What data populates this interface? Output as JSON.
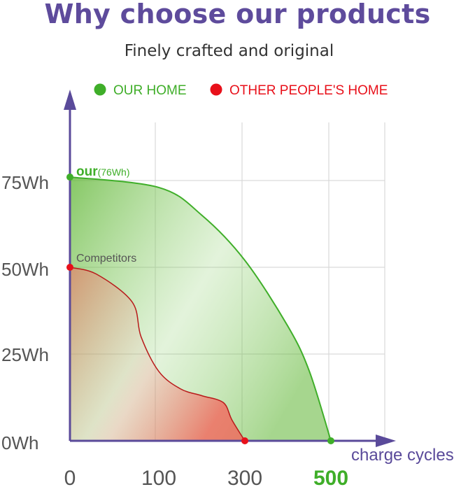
{
  "title": "Why choose our products",
  "subtitle": "Finely crafted and original",
  "chart_data": {
    "type": "area",
    "title": "Why choose our products",
    "subtitle": "Finely crafted and original",
    "xlabel": "charge cycles",
    "ylabel": "",
    "xlim": [
      0,
      500
    ],
    "ylim": [
      0,
      75
    ],
    "x_ticks": [
      "0",
      "100",
      "300",
      "500"
    ],
    "y_ticks": [
      "0Wh",
      "25Wh",
      "50Wh",
      "75Wh"
    ],
    "grid": true,
    "legend_position": "top",
    "series": [
      {
        "name": "OUR HOME",
        "color": "#5db531",
        "start_label": "our",
        "start_label_note": "(76Wh)",
        "x": [
          0,
          100,
          200,
          300,
          400,
          450,
          500
        ],
        "values": [
          76,
          73,
          65,
          52,
          33,
          20,
          0
        ]
      },
      {
        "name": "OTHER PEOPLE'S HOME",
        "color": "#e8101a",
        "start_label": "Competitors",
        "x": [
          0,
          30,
          70,
          80,
          100,
          150,
          200,
          250,
          270,
          300
        ],
        "values": [
          50,
          48,
          40,
          30,
          20,
          15,
          13,
          11,
          6,
          0
        ]
      }
    ]
  }
}
